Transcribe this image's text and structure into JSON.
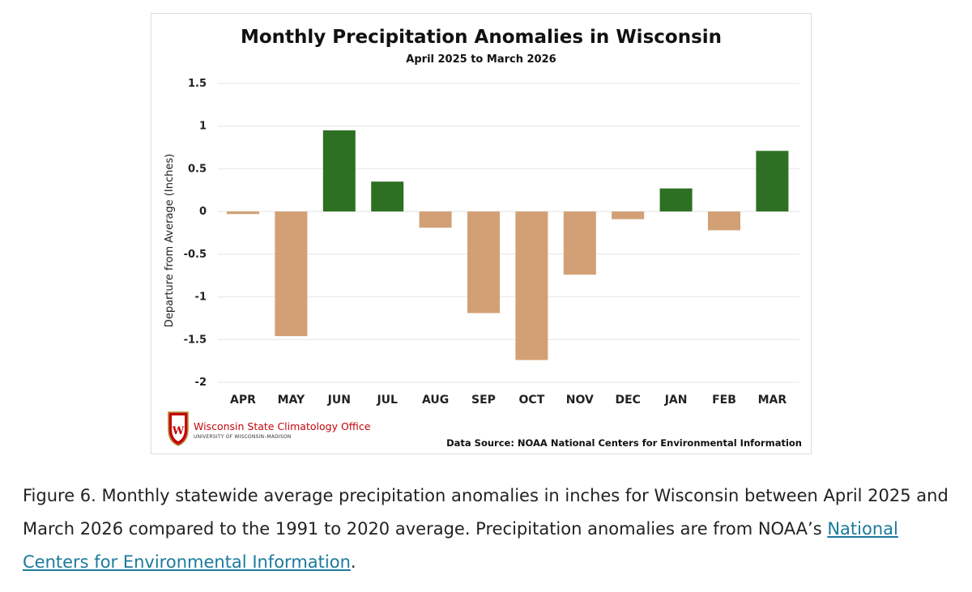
{
  "chart_data": {
    "type": "bar",
    "title": "Monthly Precipitation Anomalies in Wisconsin",
    "subtitle": "April 2025 to March 2026",
    "ylabel": "Departure from Average (Inches)",
    "xlabel": "",
    "categories": [
      "APR",
      "MAY",
      "JUN",
      "JUL",
      "AUG",
      "SEP",
      "OCT",
      "NOV",
      "DEC",
      "JAN",
      "FEB",
      "MAR"
    ],
    "values": [
      -0.03,
      -1.46,
      0.95,
      0.35,
      -0.19,
      -1.19,
      -1.74,
      -0.74,
      -0.09,
      0.27,
      -0.22,
      0.71
    ],
    "ylim": [
      -2,
      1.5
    ],
    "yticks": [
      1.5,
      1,
      0.5,
      0,
      -0.5,
      -1,
      -1.5,
      -2
    ],
    "ytick_labels": [
      "1.5",
      "1",
      "0.5",
      "0",
      "-0.5",
      "-1",
      "-1.5",
      "-2"
    ],
    "grid": true,
    "colors": {
      "positive": "#2e7023",
      "negative": "#d2a074"
    },
    "source": "Data Source: NOAA National Centers for Environmental Information"
  },
  "logo": {
    "name": "Wisconsin State Climatology Office",
    "subname": "UNIVERSITY OF WISCONSIN–MADISON",
    "crest_letter": "W",
    "crest_color": "#c5050c"
  },
  "caption": {
    "text": "Figure 6. Monthly statewide average precipitation anomalies in inches for Wisconsin between April 2025 and March 2026 compared to the 1991 to 2020 average. Precipitation anomalies are from NOAA’s ",
    "link_text": "National Centers for Environmental Information",
    "trailing": "."
  }
}
